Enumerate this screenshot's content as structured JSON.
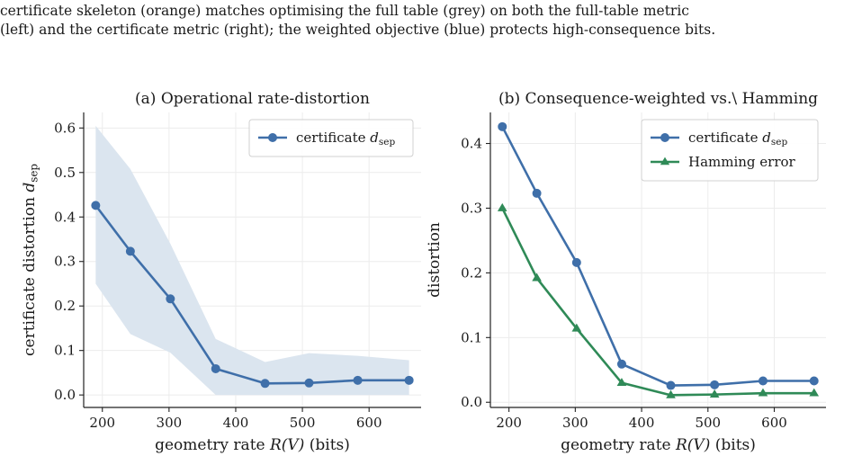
{
  "caption": {
    "line1": "certificate skeleton (orange) matches optimising the full table (grey) on both the full-table metric",
    "line2": "(left) and the certificate metric (right); the weighted objective (blue) protects high-consequence bits."
  },
  "colors": {
    "blue": "#3f6fa9",
    "green": "#2f8a57",
    "band": "#dbe5ef",
    "grid": "#ececec",
    "axis": "#222222"
  },
  "chart_data": [
    {
      "type": "line",
      "title": "(a) Operational rate-distortion",
      "xlabel": "geometry rate  R(V)  (bits)",
      "ylabel": "certificate distortion  d_sep",
      "xlim": [
        172,
        678
      ],
      "ylim": [
        -0.028,
        0.635
      ],
      "xticks": [
        200,
        300,
        400,
        500,
        600
      ],
      "yticks": [
        0.0,
        0.1,
        0.2,
        0.3,
        0.4,
        0.5,
        0.6
      ],
      "grid": true,
      "legend_position": "upper-right",
      "x": [
        190,
        242,
        302,
        370,
        444,
        510,
        583,
        660
      ],
      "series": [
        {
          "name": "certificate d_sep",
          "marker": "circle",
          "color": "#3f6fa9",
          "values": [
            0.426,
            0.323,
            0.216,
            0.059,
            0.026,
            0.027,
            0.033,
            0.033
          ],
          "band_upper": [
            0.605,
            0.508,
            0.34,
            0.126,
            0.074,
            0.094,
            0.088,
            0.078
          ],
          "band_lower": [
            0.25,
            0.137,
            0.095,
            0.0,
            0.0,
            0.0,
            0.0,
            0.0
          ]
        }
      ]
    },
    {
      "type": "line",
      "title": "(b) Consequence-weighted vs.\\ Hamming",
      "xlabel": "geometry rate  R(V)  (bits)",
      "ylabel": "distortion",
      "xlim": [
        172,
        678
      ],
      "ylim": [
        -0.008,
        0.448
      ],
      "xticks": [
        200,
        300,
        400,
        500,
        600
      ],
      "yticks": [
        0.0,
        0.1,
        0.2,
        0.3,
        0.4
      ],
      "grid": true,
      "legend_position": "upper-right",
      "x": [
        190,
        242,
        302,
        370,
        444,
        510,
        583,
        660
      ],
      "series": [
        {
          "name": "certificate d_sep",
          "marker": "circle",
          "color": "#3f6fa9",
          "values": [
            0.426,
            0.323,
            0.216,
            0.059,
            0.026,
            0.027,
            0.033,
            0.033
          ]
        },
        {
          "name": "Hamming error",
          "marker": "triangle",
          "color": "#2f8a57",
          "values": [
            0.3,
            0.192,
            0.114,
            0.03,
            0.011,
            0.012,
            0.014,
            0.014
          ]
        }
      ]
    }
  ]
}
